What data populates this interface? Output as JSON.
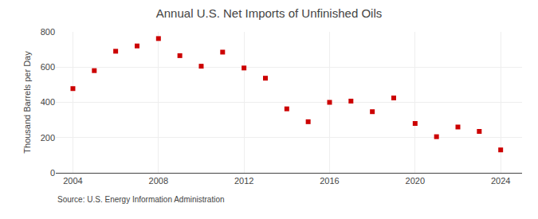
{
  "chart_data": {
    "type": "scatter",
    "title": "Annual U.S. Net Imports of Unfinished Oils",
    "ylabel": "Thousand Barrels per Day",
    "annotations": [
      "Source: U.S. Energy Information Administration"
    ],
    "x": [
      2004,
      2005,
      2006,
      2007,
      2008,
      2009,
      2010,
      2011,
      2012,
      2013,
      2014,
      2015,
      2016,
      2017,
      2018,
      2019,
      2020,
      2021,
      2022,
      2023,
      2024
    ],
    "values": [
      478,
      580,
      690,
      720,
      762,
      665,
      605,
      685,
      595,
      537,
      363,
      290,
      400,
      407,
      347,
      425,
      280,
      205,
      260,
      235,
      130
    ],
    "color": "#cc0000",
    "marker": "square",
    "xlim": [
      2003.2,
      2025.0
    ],
    "xticks": [
      2004,
      2008,
      2012,
      2016,
      2020,
      2024
    ],
    "ylim": [
      0,
      800
    ],
    "yticks": [
      0,
      200,
      400,
      600,
      800
    ],
    "grid": true
  }
}
